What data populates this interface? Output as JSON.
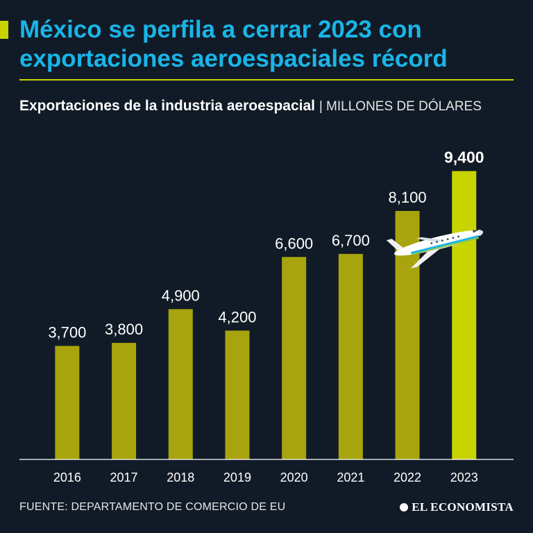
{
  "header": {
    "title": "México se perfila a cerrar 2023 con exportaciones aeroespaciales récord",
    "subtitle_strong": "Exportaciones de la industria aeroespacial",
    "subtitle_light": "| MILLONES DE DÓLARES"
  },
  "colors": {
    "background": "#111b27",
    "title": "#19b5e8",
    "accent": "#c8d400",
    "bar": "#a8a40d",
    "bar_highlight": "#c8d400"
  },
  "chart_data": {
    "type": "bar",
    "title": "Exportaciones de la industria aeroespacial",
    "ylabel": "Millones de dólares",
    "xlabel": "",
    "categories": [
      "2016",
      "2017",
      "2018",
      "2019",
      "2020",
      "2021",
      "2022",
      "2023"
    ],
    "values": [
      3700,
      3800,
      4900,
      4200,
      6600,
      6700,
      8100,
      9400
    ],
    "value_labels": [
      "3,700",
      "3,800",
      "4,900",
      "4,200",
      "6,600",
      "6,700",
      "8,100",
      "9,400"
    ],
    "highlight_index": 7,
    "ylim": [
      0,
      10000
    ],
    "grid": false,
    "legend": "none"
  },
  "footer": {
    "source": "FUENTE: DEPARTAMENTO DE COMERCIO DE EU",
    "brand": "EL ECONOMISTA"
  }
}
